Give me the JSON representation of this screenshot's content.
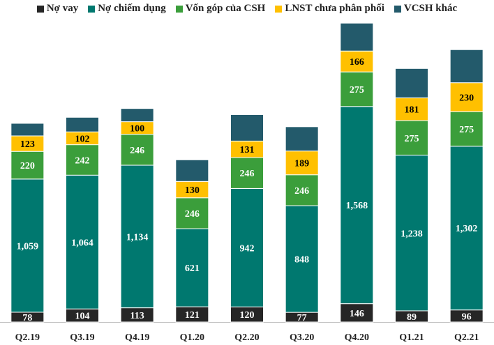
{
  "chart_data": {
    "type": "stacked-bar",
    "title": "",
    "xlabel": "",
    "ylabel": "",
    "categories": [
      "Q2.19",
      "Q3.19",
      "Q4.19",
      "Q1.20",
      "Q2.20",
      "Q3.20",
      "Q4.20",
      "Q1.21",
      "Q2.21"
    ],
    "series": [
      {
        "name": "Nợ vay",
        "color": "#262626",
        "text_color": "#ffffff",
        "values": [
          78,
          104,
          113,
          121,
          120,
          77,
          146,
          89,
          96
        ]
      },
      {
        "name": "Nợ chiếm dụng",
        "color": "#00786f",
        "text_color": "#ffffff",
        "values": [
          1059,
          1064,
          1134,
          621,
          942,
          848,
          1568,
          1238,
          1302
        ]
      },
      {
        "name": "Vốn góp của CSH",
        "color": "#3b9e3b",
        "text_color": "#ffffff",
        "values": [
          220,
          242,
          246,
          246,
          246,
          246,
          275,
          275,
          275
        ]
      },
      {
        "name": "LNST chưa phân phối",
        "color": "#ffc000",
        "text_color": "#000000",
        "values": [
          123,
          102,
          100,
          130,
          131,
          189,
          166,
          181,
          230
        ]
      },
      {
        "name": "VCSH khác",
        "color": "#235a6b",
        "text_color": "#ffffff",
        "values": [
          100,
          116,
          105,
          172,
          210,
          193,
          222,
          233,
          263
        ],
        "labeled": false
      }
    ],
    "ylim": [
      0,
      2450
    ],
    "legend": "top",
    "grid": false
  }
}
